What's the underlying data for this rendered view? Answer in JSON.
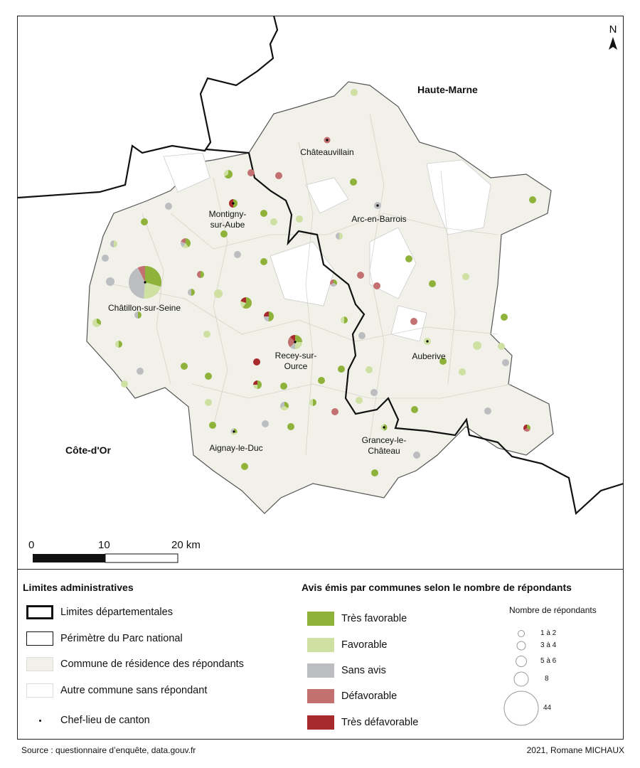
{
  "map": {
    "departments": [
      "Haute-Marne",
      "Côte-d'Or"
    ],
    "cantons": [
      {
        "name": "Châteauvillain"
      },
      {
        "name": "Montigny-\nsur-Aube"
      },
      {
        "name": "Arc-en-Barrois"
      },
      {
        "name": "Châtillon-sur-Seine"
      },
      {
        "name": "Recey-sur-\nOurce"
      },
      {
        "name": "Auberive"
      },
      {
        "name": "Aignay-le-Duc"
      },
      {
        "name": "Grancey-le-\nChâteau"
      }
    ],
    "north_label": "N",
    "scale": {
      "ticks": [
        "0",
        "10",
        "20 km"
      ]
    }
  },
  "legend": {
    "admin_title": "Limites administratives",
    "admin_items": [
      "Limites départementales",
      "Périmètre du Parc national",
      "Commune de résidence des répondants",
      "Autre commune sans répondant",
      "Chef-lieu de canton"
    ],
    "opinion_title": "Avis émis par communes selon le nombre de répondants",
    "opinions": [
      {
        "label": "Très favorable",
        "color": "#8fb33a"
      },
      {
        "label": "Favorable",
        "color": "#cfe0a3"
      },
      {
        "label": "Sans avis",
        "color": "#bcbdc0"
      },
      {
        "label": "Défavorable",
        "color": "#c27170"
      },
      {
        "label": "Très défavorable",
        "color": "#a72b2c"
      }
    ],
    "size_title": "Nombre de répondants",
    "sizes": [
      "1 à 2",
      "3 à 4",
      "5 à 6",
      "8",
      "44"
    ]
  },
  "footer": {
    "source": "Source : questionnaire d’enquête, data.gouv.fr",
    "credit": "2021, Romane MICHAUX"
  }
}
